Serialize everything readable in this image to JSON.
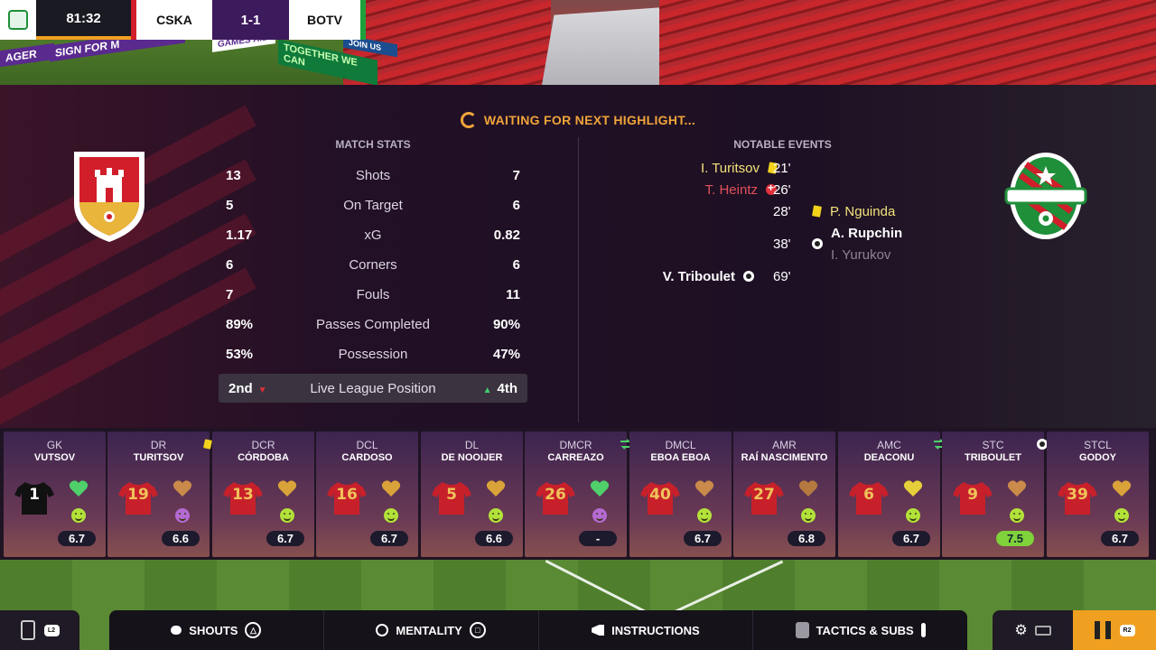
{
  "scoreboard": {
    "time": "81:32",
    "home": "CSKA",
    "score": "1-1",
    "away": "BOTV"
  },
  "stadium_boards": [
    "AGER",
    "SIGN FOR M",
    "GAMES AID",
    "TOGETHER WE CAN",
    "JOIN US"
  ],
  "waiting": "WAITING FOR NEXT HIGHLIGHT...",
  "stats_title": "MATCH STATS",
  "events_title": "NOTABLE EVENTS",
  "stats": [
    {
      "home": "13",
      "label": "Shots",
      "away": "7"
    },
    {
      "home": "5",
      "label": "On Target",
      "away": "6"
    },
    {
      "home": "1.17",
      "label": "xG",
      "away": "0.82"
    },
    {
      "home": "6",
      "label": "Corners",
      "away": "6"
    },
    {
      "home": "7",
      "label": "Fouls",
      "away": "11"
    },
    {
      "home": "89%",
      "label": "Passes Completed",
      "away": "90%"
    },
    {
      "home": "53%",
      "label": "Possession",
      "away": "47%"
    }
  ],
  "league": {
    "home": "2nd",
    "label": "Live League Position",
    "away": "4th"
  },
  "events": [
    {
      "side": "home",
      "name": "I. Turitsov",
      "minute": "21'",
      "icon": "yellow-card-icon"
    },
    {
      "side": "home",
      "name": "T. Heintz",
      "minute": "26'",
      "icon": "substitution-icon"
    },
    {
      "side": "away",
      "name": "P. Nguinda",
      "minute": "28'",
      "icon": "yellow-card-icon"
    },
    {
      "side": "away",
      "name": "A. Rupchin",
      "assist": "I. Yurukov",
      "minute": "38'",
      "icon": "goal-ball-icon"
    },
    {
      "side": "home",
      "name": "V. Triboulet",
      "minute": "69'",
      "icon": "goal-ball-icon"
    }
  ],
  "players": [
    {
      "pos": "GK",
      "name": "VUTSOV",
      "num": "1",
      "rating": "6.7",
      "morale": "green",
      "heart": "#4fd06a",
      "gk": true
    },
    {
      "pos": "DR",
      "name": "TURITSOV",
      "num": "19",
      "rating": "6.6",
      "morale": "purple",
      "heart": "#c98a4a",
      "yellow": true
    },
    {
      "pos": "DCR",
      "name": "CÓRDOBA",
      "num": "13",
      "rating": "6.7",
      "morale": "green",
      "heart": "#d9a33a"
    },
    {
      "pos": "DCL",
      "name": "CARDOSO",
      "num": "16",
      "rating": "6.7",
      "morale": "green",
      "heart": "#d9a33a"
    },
    {
      "pos": "DL",
      "name": "DE NOOIJER",
      "num": "5",
      "rating": "6.6",
      "morale": "green",
      "heart": "#d9a33a"
    },
    {
      "pos": "DMCR",
      "name": "CARREAZO",
      "num": "26",
      "rating": "-",
      "morale": "purple",
      "heart": "#4fd06a",
      "sub": true
    },
    {
      "pos": "DMCL",
      "name": "EBOA EBOA",
      "num": "40",
      "rating": "6.7",
      "morale": "green",
      "heart": "#c98a4a"
    },
    {
      "pos": "AMR",
      "name": "RAÍ NASCIMENTO",
      "num": "27",
      "rating": "6.8",
      "morale": "green",
      "heart": "#b4793f"
    },
    {
      "pos": "AMC",
      "name": "DEACONU",
      "num": "6",
      "rating": "6.7",
      "morale": "green",
      "heart": "#e6cf3a",
      "sub": true
    },
    {
      "pos": "STC",
      "name": "TRIBOULET",
      "num": "9",
      "rating": "7.5",
      "morale": "green",
      "heart": "#c98a4a",
      "goal": true,
      "high": true
    },
    {
      "pos": "STCL",
      "name": "GODOY",
      "num": "39",
      "rating": "6.7",
      "morale": "green",
      "heart": "#d9a33a"
    }
  ],
  "toolbar": {
    "left_badge": "L2",
    "shouts": "SHOUTS",
    "mentality": "MENTALITY",
    "instructions": "INSTRUCTIONS",
    "tactics": "TACTICS & SUBS",
    "right_badge": "R2"
  },
  "colors": {
    "accent": "#f0a020",
    "home_red": "#d11e2a",
    "away_green": "#1f9f3a"
  }
}
